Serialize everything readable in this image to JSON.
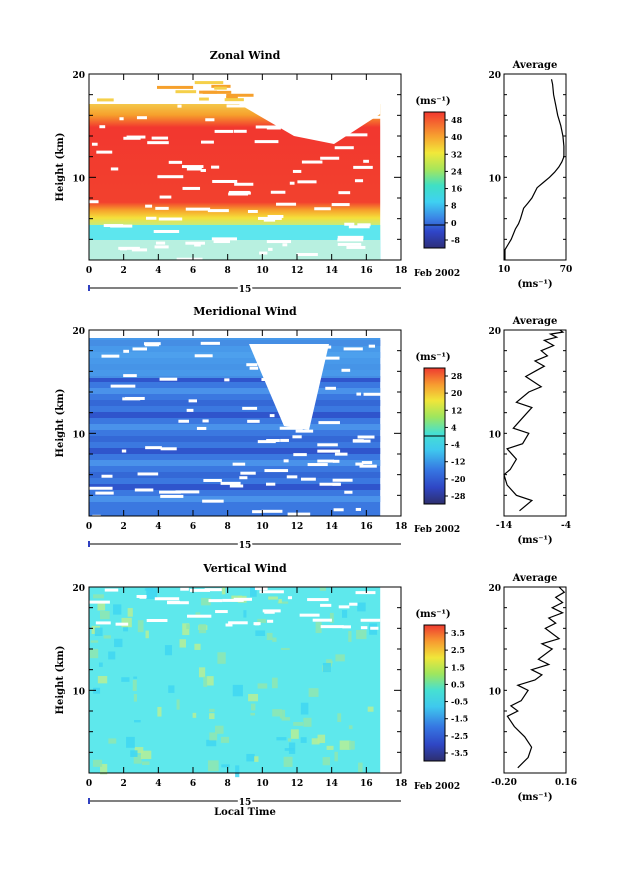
{
  "chart_data": [
    {
      "type": "heatmap",
      "title": "Zonal Wind",
      "ylabel": "Height (km)",
      "xlim": [
        0,
        18
      ],
      "ylim": [
        2,
        20
      ],
      "xticks": [
        "0",
        "2",
        "4",
        "6",
        "8",
        "10",
        "12",
        "14",
        "16",
        "18"
      ],
      "yticks": [
        "10",
        "20"
      ],
      "date_day": "15",
      "date_label": "Feb 2002",
      "unit": "(ms⁻¹)",
      "colorbar": {
        "range": [
          -8,
          52
        ],
        "ticks": [
          "48",
          "40",
          "32",
          "24",
          "16",
          "8",
          "0",
          "-8"
        ]
      },
      "profile": {
        "title": "Average",
        "xlim": [
          10,
          70
        ],
        "xticks": [
          "10",
          "70"
        ],
        "yticks": [
          "10",
          "20"
        ],
        "unit": "(ms⁻¹)",
        "x": [
          11,
          11,
          14,
          17,
          21,
          24,
          26,
          29,
          33,
          37,
          42,
          48,
          54,
          59,
          63,
          66,
          68,
          68,
          67,
          65,
          62,
          60,
          58,
          57,
          56
        ],
        "y": [
          2,
          3,
          3.5,
          4,
          5,
          5.5,
          6,
          7,
          7.5,
          8,
          9,
          9.5,
          10,
          10.5,
          11,
          11.5,
          12,
          13,
          14,
          15,
          16,
          17,
          18,
          19,
          19.5
        ]
      }
    },
    {
      "type": "heatmap",
      "title": "Meridional Wind",
      "ylabel": "Height (km)",
      "xlim": [
        0,
        18
      ],
      "ylim": [
        2,
        20
      ],
      "xticks": [
        "0",
        "2",
        "4",
        "6",
        "8",
        "10",
        "12",
        "14",
        "16",
        "18"
      ],
      "yticks": [
        "10",
        "20"
      ],
      "date_day": "15",
      "date_label": "Feb 2002",
      "unit": "(ms⁻¹)",
      "colorbar": {
        "range": [
          -28,
          28
        ],
        "ticks": [
          "28",
          "20",
          "12",
          "4",
          "-4",
          "-12",
          "-20",
          "-28"
        ]
      },
      "profile": {
        "title": "Average",
        "xlim": [
          -14,
          -4
        ],
        "xticks": [
          "-14",
          "-4"
        ],
        "yticks": [
          "10",
          "20"
        ],
        "unit": "(ms⁻¹)",
        "x": [
          -11.5,
          -9.5,
          -12,
          -13.5,
          -14,
          -13,
          -12,
          -13.5,
          -11,
          -10,
          -12.5,
          -11,
          -9.5,
          -12,
          -10,
          -8,
          -10.5,
          -9,
          -7.5,
          -9,
          -7,
          -8,
          -6,
          -7.5,
          -5.5,
          -6.5,
          -4.5,
          -5
        ],
        "y": [
          2.5,
          3.5,
          4,
          5,
          6,
          6.5,
          7.5,
          8.5,
          9,
          10,
          10.5,
          11.5,
          12.5,
          13,
          14,
          14.5,
          15.5,
          16,
          16.5,
          17,
          17.5,
          18,
          18.5,
          19,
          19.3,
          19.6,
          19.8,
          20
        ]
      }
    },
    {
      "type": "heatmap",
      "title": "Vertical Wind",
      "ylabel": "Height (km)",
      "xlabel": "Local Time",
      "xlim": [
        0,
        18
      ],
      "ylim": [
        2,
        20
      ],
      "xticks": [
        "0",
        "2",
        "4",
        "6",
        "8",
        "10",
        "12",
        "14",
        "16",
        "18"
      ],
      "yticks": [
        "10",
        "20"
      ],
      "date_day": "15",
      "date_label": "Feb 2002",
      "unit": "(ms⁻¹)",
      "colorbar": {
        "range": [
          -4,
          4
        ],
        "ticks": [
          "3.5",
          "2.5",
          "1.5",
          "0.5",
          "-0.5",
          "-1.5",
          "-2.5",
          "-3.5"
        ]
      },
      "profile": {
        "title": "Average",
        "xlim": [
          -0.2,
          0.16
        ],
        "xticks": [
          "-0.20",
          "0.16"
        ],
        "yticks": [
          "10",
          "20"
        ],
        "unit": "(ms⁻¹)",
        "x": [
          -0.12,
          -0.06,
          -0.04,
          -0.08,
          -0.14,
          -0.18,
          -0.12,
          -0.16,
          -0.1,
          -0.06,
          -0.12,
          -0.02,
          0.02,
          -0.04,
          0.06,
          0.0,
          0.08,
          0.02,
          0.12,
          0.04,
          0.1,
          0.06,
          0.14,
          0.08,
          0.14,
          0.1,
          0.15,
          0.12
        ],
        "y": [
          2.5,
          3.5,
          4.5,
          5.5,
          6.5,
          7.5,
          8,
          8.5,
          9,
          10,
          10.5,
          11,
          11.5,
          12,
          12.5,
          13,
          14,
          14.5,
          15,
          16,
          16.5,
          17,
          17.5,
          18,
          18.5,
          19,
          19.5,
          20
        ]
      }
    }
  ]
}
